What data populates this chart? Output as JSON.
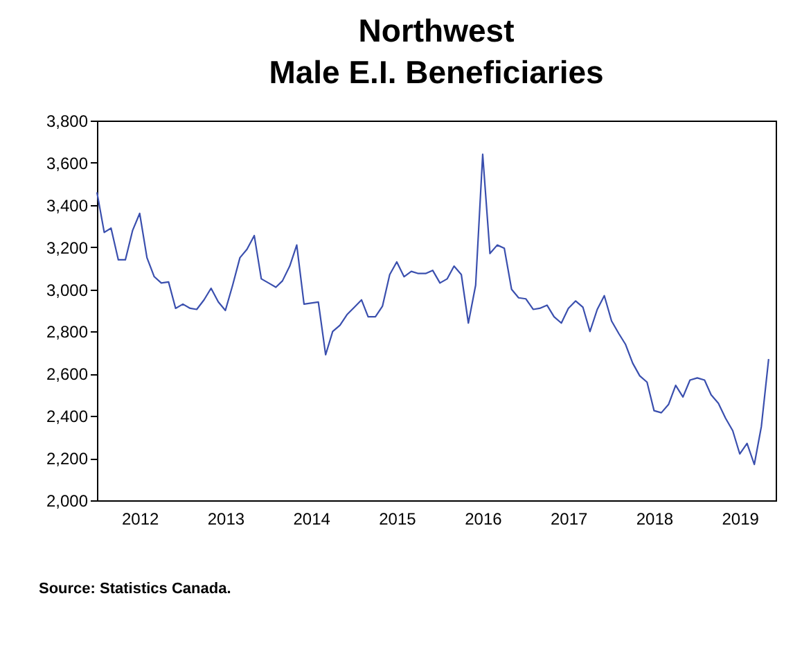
{
  "chart_data": {
    "type": "line",
    "title": [
      "Northwest",
      "Male E.I. Beneficiaries"
    ],
    "x": [
      "2012-01",
      "2012-02",
      "2012-03",
      "2012-04",
      "2012-05",
      "2012-06",
      "2012-07",
      "2012-08",
      "2012-09",
      "2012-10",
      "2012-11",
      "2012-12",
      "2013-01",
      "2013-02",
      "2013-03",
      "2013-04",
      "2013-05",
      "2013-06",
      "2013-07",
      "2013-08",
      "2013-09",
      "2013-10",
      "2013-11",
      "2013-12",
      "2014-01",
      "2014-02",
      "2014-03",
      "2014-04",
      "2014-05",
      "2014-06",
      "2014-07",
      "2014-08",
      "2014-09",
      "2014-10",
      "2014-11",
      "2014-12",
      "2015-01",
      "2015-02",
      "2015-03",
      "2015-04",
      "2015-05",
      "2015-06",
      "2015-07",
      "2015-08",
      "2015-09",
      "2015-10",
      "2015-11",
      "2015-12",
      "2016-01",
      "2016-02",
      "2016-03",
      "2016-04",
      "2016-05",
      "2016-06",
      "2016-07",
      "2016-08",
      "2016-09",
      "2016-10",
      "2016-11",
      "2016-12",
      "2017-01",
      "2017-02",
      "2017-03",
      "2017-04",
      "2017-05",
      "2017-06",
      "2017-07",
      "2017-08",
      "2017-09",
      "2017-10",
      "2017-11",
      "2017-12",
      "2018-01",
      "2018-02",
      "2018-03",
      "2018-04",
      "2018-05",
      "2018-06",
      "2018-07",
      "2018-08",
      "2018-09",
      "2018-10",
      "2018-11",
      "2018-12",
      "2019-01",
      "2019-02",
      "2019-03",
      "2019-04",
      "2019-05",
      "2019-06",
      "2019-07",
      "2019-08",
      "2019-09",
      "2019-10",
      "2019-11"
    ],
    "series": [
      {
        "color": "#3a4fae",
        "values": [
          3460,
          3270,
          3290,
          3140,
          3140,
          3280,
          3360,
          3150,
          3060,
          3030,
          3035,
          2910,
          2930,
          2910,
          2905,
          2950,
          3005,
          2940,
          2900,
          3020,
          3150,
          3190,
          3255,
          3050,
          3030,
          3010,
          3040,
          3110,
          3210,
          2930,
          2935,
          2940,
          2690,
          2800,
          2830,
          2880,
          2915,
          2950,
          2870,
          2870,
          2920,
          3070,
          3130,
          3060,
          3085,
          3075,
          3075,
          3090,
          3030,
          3050,
          3110,
          3070,
          2840,
          3020,
          3640,
          3170,
          3210,
          3195,
          3000,
          2960,
          2955,
          2905,
          2910,
          2925,
          2870,
          2840,
          2910,
          2945,
          2915,
          2800,
          2905,
          2970,
          2850,
          2790,
          2740,
          2650,
          2590,
          2560,
          2425,
          2415,
          2455,
          2545,
          2490,
          2570,
          2580,
          2570,
          2500,
          2460,
          2390,
          2330,
          2220,
          2270,
          2170,
          2350,
          2670
        ]
      }
    ],
    "xlim": [
      "2012-01",
      "2019-12"
    ],
    "xticks": [
      {
        "value": "2012-07",
        "label": "2012"
      },
      {
        "value": "2013-07",
        "label": "2013"
      },
      {
        "value": "2014-07",
        "label": "2014"
      },
      {
        "value": "2015-07",
        "label": "2015"
      },
      {
        "value": "2016-07",
        "label": "2016"
      },
      {
        "value": "2017-07",
        "label": "2017"
      },
      {
        "value": "2018-07",
        "label": "2018"
      },
      {
        "value": "2019-07",
        "label": "2019"
      }
    ],
    "ylim": [
      2000,
      3800
    ],
    "yticks": [
      {
        "value": 2000,
        "label": "2,000"
      },
      {
        "value": 2200,
        "label": "2,200"
      },
      {
        "value": 2400,
        "label": "2,400"
      },
      {
        "value": 2600,
        "label": "2,600"
      },
      {
        "value": 2800,
        "label": "2,800"
      },
      {
        "value": 3000,
        "label": "3,000"
      },
      {
        "value": 3200,
        "label": "3,200"
      },
      {
        "value": 3400,
        "label": "3,400"
      },
      {
        "value": 3600,
        "label": "3,600"
      },
      {
        "value": 3800,
        "label": "3,800"
      }
    ],
    "grid": false,
    "legend": false,
    "annotations": [
      "Source: Statistics Canada."
    ]
  }
}
